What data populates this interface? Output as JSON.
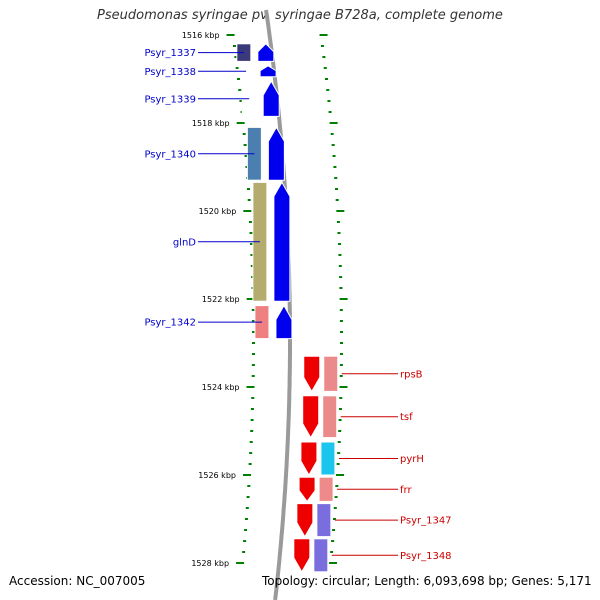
{
  "title": "Pseudomonas syringae pv. syringae B728a, complete genome",
  "footer": {
    "accession": "Accession: NC_007005",
    "topology": "Topology: circular; Length: 6,093,698 bp; Genes: 5,171"
  },
  "scale": {
    "unit": "kbp",
    "ticks": [
      {
        "label": "1516 kbp",
        "kbp": 1516
      },
      {
        "label": "1518 kbp",
        "kbp": 1518
      },
      {
        "label": "1520 kbp",
        "kbp": 1520
      },
      {
        "label": "1522 kbp",
        "kbp": 1522
      },
      {
        "label": "1524 kbp",
        "kbp": 1524
      },
      {
        "label": "1526 kbp",
        "kbp": 1526
      },
      {
        "label": "1528 kbp",
        "kbp": 1528
      }
    ]
  },
  "colors": {
    "forward_strand": "#0000ee",
    "reverse_strand": "#ee0000",
    "label_forward": "#0000cc",
    "label_reverse": "#cc0000",
    "backbone": "#9a9a9a",
    "ticks": "#008000"
  },
  "forward_genes": [
    {
      "name": "Psyr_1337",
      "start": 1516.2,
      "end": 1516.6,
      "cog_color": "#3a3a7a"
    },
    {
      "name": "Psyr_1338",
      "start": 1516.7,
      "end": 1516.95,
      "cog_color": "#ffffff"
    },
    {
      "name": "Psyr_1339",
      "start": 1517.05,
      "end": 1517.85,
      "cog_color": "#ffffff"
    },
    {
      "name": "Psyr_1340",
      "start": 1518.1,
      "end": 1519.3,
      "cog_color": "#4a7fb0"
    },
    {
      "name": "glnD",
      "start": 1519.35,
      "end": 1522.05,
      "cog_color": "#b4ac6e"
    },
    {
      "name": "Psyr_1342",
      "start": 1522.15,
      "end": 1522.9,
      "cog_color": "#ee8080"
    }
  ],
  "reverse_genes": [
    {
      "name": "rpsB",
      "start": 1523.3,
      "end": 1524.1,
      "cog_color": "#ea8a8a"
    },
    {
      "name": "tsf",
      "start": 1524.2,
      "end": 1525.15,
      "cog_color": "#ea8a8a"
    },
    {
      "name": "pyrH",
      "start": 1525.25,
      "end": 1526.0,
      "cog_color": "#1ac6ee"
    },
    {
      "name": "frr",
      "start": 1526.05,
      "end": 1526.6,
      "cog_color": "#ee8a8a"
    },
    {
      "name": "Psyr_1347",
      "start": 1526.65,
      "end": 1527.4,
      "cog_color": "#7a6ede"
    },
    {
      "name": "Psyr_1348",
      "start": 1527.45,
      "end": 1528.2,
      "cog_color": "#7a6ede"
    }
  ]
}
